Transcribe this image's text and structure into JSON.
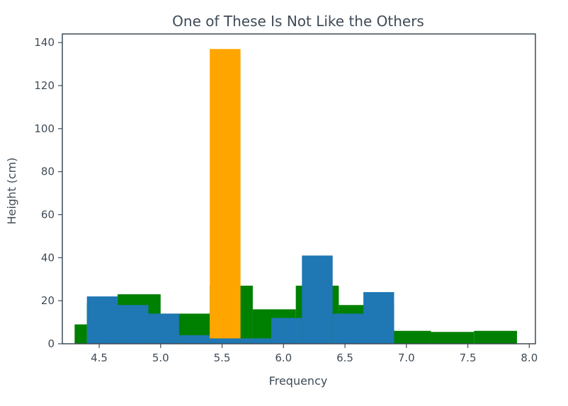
{
  "chart_data": {
    "type": "bar",
    "title": "One of These Is Not Like the Others",
    "xlabel": "Frequency",
    "ylabel": "Height (cm)",
    "xlim": [
      4.2,
      8.05
    ],
    "ylim": [
      0,
      144
    ],
    "xticks": [
      4.5,
      5.0,
      5.5,
      6.0,
      6.5,
      7.0,
      7.5,
      8.0
    ],
    "xtick_labels": [
      "4.5",
      "5.0",
      "5.5",
      "6.0",
      "6.5",
      "7.0",
      "7.5",
      "8.0"
    ],
    "yticks": [
      0,
      20,
      40,
      60,
      80,
      100,
      120,
      140
    ],
    "ytick_labels": [
      "0",
      "20",
      "40",
      "60",
      "80",
      "100",
      "120",
      "140"
    ],
    "grid": false,
    "series": [
      {
        "color": "#008000",
        "bins": [
          {
            "x0": 4.3,
            "x1": 4.4,
            "y0": 0,
            "y1": 9
          },
          {
            "x0": 4.4,
            "x1": 4.65,
            "y0": 0,
            "y1": 19
          },
          {
            "x0": 4.65,
            "x1": 5.0,
            "y0": 0,
            "y1": 23
          },
          {
            "x0": 5.0,
            "x1": 5.4,
            "y0": 0,
            "y1": 14
          },
          {
            "x0": 5.4,
            "x1": 5.75,
            "y0": 0,
            "y1": 27
          },
          {
            "x0": 5.75,
            "x1": 6.1,
            "y0": 0,
            "y1": 16
          },
          {
            "x0": 6.1,
            "x1": 6.45,
            "y0": 0,
            "y1": 27
          },
          {
            "x0": 6.45,
            "x1": 6.9,
            "y0": 0,
            "y1": 18
          },
          {
            "x0": 6.9,
            "x1": 7.2,
            "y0": 0,
            "y1": 6
          },
          {
            "x0": 7.2,
            "x1": 7.55,
            "y0": 0,
            "y1": 5.5
          },
          {
            "x0": 7.55,
            "x1": 7.9,
            "y0": 0,
            "y1": 6
          }
        ]
      },
      {
        "color": "#1f77b4",
        "bins": [
          {
            "x0": 4.4,
            "x1": 4.65,
            "y0": 0,
            "y1": 22
          },
          {
            "x0": 4.65,
            "x1": 4.9,
            "y0": 0,
            "y1": 18
          },
          {
            "x0": 4.9,
            "x1": 5.15,
            "y0": 0,
            "y1": 14
          },
          {
            "x0": 5.15,
            "x1": 5.4,
            "y0": 0,
            "y1": 4
          },
          {
            "x0": 5.4,
            "x1": 5.65,
            "y0": 0,
            "y1": 2.5
          },
          {
            "x0": 5.65,
            "x1": 5.9,
            "y0": 0,
            "y1": 2.5
          },
          {
            "x0": 5.9,
            "x1": 6.15,
            "y0": 0,
            "y1": 12
          },
          {
            "x0": 6.15,
            "x1": 6.4,
            "y0": 0,
            "y1": 41
          },
          {
            "x0": 6.4,
            "x1": 6.65,
            "y0": 0,
            "y1": 14
          },
          {
            "x0": 6.65,
            "x1": 6.9,
            "y0": 0,
            "y1": 24
          }
        ]
      },
      {
        "color": "#ffa500",
        "bins": [
          {
            "x0": 5.4,
            "x1": 5.65,
            "y0": 2.5,
            "y1": 137
          }
        ]
      }
    ]
  }
}
